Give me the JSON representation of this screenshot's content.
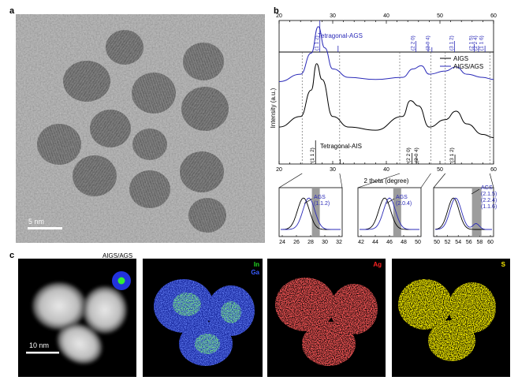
{
  "panels": {
    "a": {
      "label": "a",
      "scalebar": "5 nm"
    },
    "b": {
      "label": "b",
      "top_ref": {
        "name": "Tetragonal-AGS",
        "peaks": [
          "(1 1 2)",
          "(2 2 0)",
          "(2 0 4)",
          "(3 1 2)",
          "(2 1 5)",
          "(2 2 4)",
          "(1 1 6)"
        ]
      },
      "bottom_ref": {
        "name": "Tetragonal-AIS",
        "peaks": [
          "(1 1 2)",
          "(2 2 0)",
          "(2 0 4)",
          "(3 1 2)"
        ]
      },
      "ylabel": "Intensity (a.u.)",
      "xlabel": "2 theta (degree)",
      "legend": [
        "AIGS",
        "AIGS/AGS"
      ],
      "xticks": [
        "20",
        "30",
        "40",
        "50",
        "60"
      ],
      "insets": [
        {
          "label_lines": [
            "AGS",
            "(1.1.2)"
          ],
          "xticks": [
            "24",
            "26",
            "28",
            "30",
            "32"
          ]
        },
        {
          "label_lines": [
            "AGS",
            "(2.0.4)"
          ],
          "xticks": [
            "42",
            "44",
            "46",
            "48",
            "50"
          ]
        },
        {
          "label_lines": [
            "AGS",
            "(2.1.5)",
            "(2.2.4)",
            "(1.1.6)"
          ],
          "xticks": [
            "50",
            "52",
            "54",
            "56",
            "58",
            "60"
          ]
        }
      ]
    },
    "c": {
      "label": "c",
      "haadf_title": "AIGS/AGS",
      "scalebar": "10 nm",
      "maps": [
        {
          "labels": [
            "In",
            "Ga"
          ],
          "colors": [
            "#22dd22",
            "#3a5cff"
          ]
        },
        {
          "labels": [
            "Ag"
          ],
          "colors": [
            "#ff2222"
          ]
        },
        {
          "labels": [
            "S"
          ],
          "colors": [
            "#ffee00"
          ]
        }
      ]
    }
  },
  "chart_data": {
    "type": "line",
    "x_range": [
      20,
      60
    ],
    "xlabel": "2 theta (degree)",
    "ylabel": "Intensity (a.u.)",
    "series": [
      {
        "name": "AIGS",
        "x": [
          20,
          24,
          26,
          27,
          28,
          30,
          33,
          38,
          43,
          44.5,
          46,
          48,
          51,
          53,
          55,
          58,
          60
        ],
        "y": [
          0.35,
          0.45,
          0.7,
          0.95,
          0.8,
          0.45,
          0.35,
          0.32,
          0.45,
          0.6,
          0.55,
          0.35,
          0.42,
          0.5,
          0.38,
          0.28,
          0.25
        ]
      },
      {
        "name": "AIGS/AGS",
        "x": [
          20,
          24,
          26,
          27.3,
          28.5,
          30,
          33,
          38,
          43,
          45,
          46.5,
          48,
          51,
          53,
          55,
          58,
          60
        ],
        "y": [
          0.78,
          0.85,
          1.05,
          1.3,
          1.1,
          0.9,
          0.82,
          0.8,
          0.82,
          0.9,
          0.93,
          0.85,
          0.88,
          0.92,
          0.85,
          0.82,
          0.8
        ]
      }
    ]
  }
}
